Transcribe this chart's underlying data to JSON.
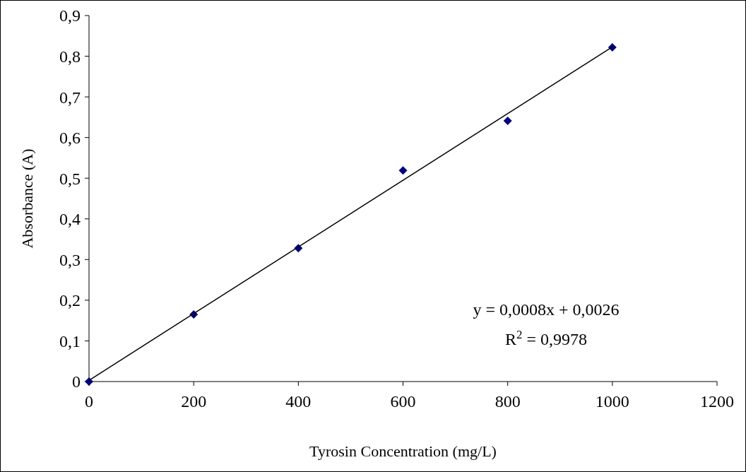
{
  "chart_data": {
    "type": "scatter",
    "xlabel": "Tyrosin Concentration (mg/L)",
    "ylabel": "Absorbance (A)",
    "xlim": [
      0,
      1200
    ],
    "xticks": [
      0,
      200,
      400,
      600,
      800,
      1000,
      1200
    ],
    "ylim": [
      0,
      0.9
    ],
    "yticks": [
      {
        "value": 0,
        "label": "0"
      },
      {
        "value": 0.1,
        "label": "0,1"
      },
      {
        "value": 0.2,
        "label": "0,2"
      },
      {
        "value": 0.3,
        "label": "0,3"
      },
      {
        "value": 0.4,
        "label": "0,4"
      },
      {
        "value": 0.5,
        "label": "0,5"
      },
      {
        "value": 0.6,
        "label": "0,6"
      },
      {
        "value": 0.7,
        "label": "0,7"
      },
      {
        "value": 0.8,
        "label": "0,8"
      },
      {
        "value": 0.9,
        "label": "0,9"
      }
    ],
    "grid": false,
    "series": [
      {
        "color": "#000080",
        "marker": "diamond",
        "x": [
          0,
          200,
          400,
          600,
          800,
          1000
        ],
        "values": [
          0,
          0.165,
          0.328,
          0.519,
          0.641,
          0.822
        ]
      },
      {
        "type": "line",
        "color": "#000000",
        "marker": "none",
        "x": [
          0,
          1000
        ],
        "values": [
          0.003,
          0.823
        ]
      }
    ],
    "annotations": [
      "y = 0,0008x + 0,0026",
      "R$^{2}$ = 0,9978"
    ]
  }
}
